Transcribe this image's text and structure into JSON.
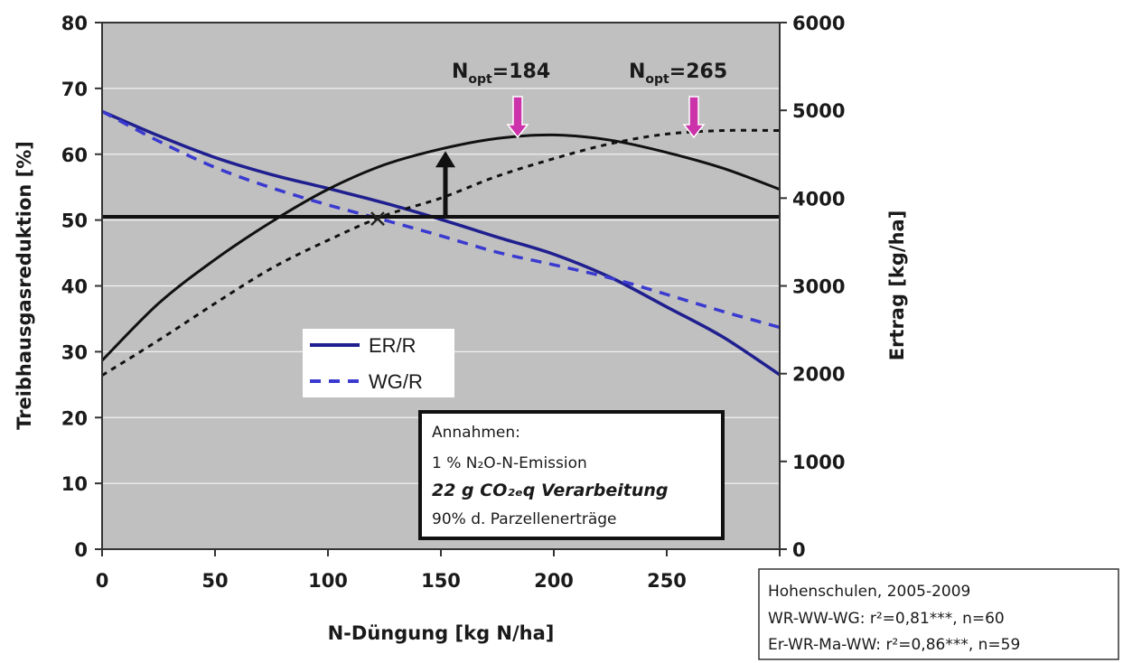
{
  "chart_data": {
    "type": "line",
    "xlabel": "N-Düngung [kg N/ha]",
    "ylabel": "Treibhausgasreduktion [%]",
    "y2label": "Ertrag [kg/ha]",
    "xlim": [
      0,
      300
    ],
    "ylim": [
      0,
      80
    ],
    "y2lim": [
      0,
      6000
    ],
    "x_ticks": [
      0,
      50,
      100,
      150,
      200,
      250
    ],
    "y_ticks": [
      0,
      10,
      20,
      30,
      40,
      50,
      60,
      70,
      80
    ],
    "y2_ticks": [
      0,
      1000,
      2000,
      3000,
      4000,
      5000,
      6000
    ],
    "grid": "horizontal",
    "background": "#c0c0c0",
    "series": [
      {
        "name": "ER/R",
        "axis": "left",
        "style": "solid",
        "color": "#1f1f8f",
        "x": [
          0,
          25,
          50,
          75,
          100,
          125,
          150,
          175,
          200,
          225,
          250,
          275,
          300
        ],
        "y": [
          66.5,
          62.8,
          59.5,
          56.9,
          54.8,
          52.6,
          50.1,
          47.4,
          44.8,
          41.3,
          36.8,
          32.2,
          26.5
        ]
      },
      {
        "name": "WG/R",
        "axis": "left",
        "style": "dashed",
        "color": "#3a3ad0",
        "x": [
          0,
          25,
          50,
          75,
          100,
          125,
          150,
          175,
          200,
          225,
          250,
          275,
          300
        ],
        "y": [
          66.5,
          62.0,
          58.0,
          54.9,
          52.3,
          50.0,
          47.6,
          45.1,
          43.2,
          41.2,
          38.7,
          36.1,
          33.7
        ]
      },
      {
        "axis": "right",
        "style": "solid",
        "color": "#111111",
        "x": [
          0,
          25,
          50,
          75,
          100,
          125,
          150,
          175,
          200,
          225,
          250,
          275,
          300
        ],
        "y": [
          2150,
          2800,
          3300,
          3730,
          4100,
          4380,
          4560,
          4680,
          4720,
          4660,
          4520,
          4340,
          4100
        ]
      },
      {
        "axis": "right",
        "style": "dotted",
        "color": "#111111",
        "x": [
          0,
          25,
          50,
          75,
          100,
          125,
          150,
          175,
          200,
          225,
          250,
          275,
          300
        ],
        "y": [
          1980,
          2380,
          2800,
          3200,
          3520,
          3800,
          4000,
          4250,
          4450,
          4620,
          4730,
          4770,
          4770
        ]
      }
    ],
    "reference_line": {
      "axis": "left",
      "y": 50.5
    },
    "intersection_marker": {
      "x": 122,
      "y": 50.2
    },
    "vertical_arrow": {
      "x": 152,
      "y_from": 50.5,
      "y_to": 60.2
    },
    "annotations": [
      {
        "sub": "opt",
        "value": "=184",
        "x": 184,
        "color": "#cc33aa"
      },
      {
        "sub": "opt",
        "value": "=265",
        "x": 262,
        "color": "#cc33aa"
      }
    ]
  },
  "legend": {
    "items": [
      "ER/R",
      "WG/R"
    ]
  },
  "assumptions_box": {
    "title": "Annahmen:",
    "line1": "1 % N₂O-N-Emission",
    "line2": "22 g CO₂ₑq Verarbeitung",
    "line3": "90% d. Parzellenerträge"
  },
  "source_box": {
    "line1": "Hohenschulen, 2005-2009",
    "line2": "WR-WW-WG: r²=0,81***, n=60",
    "line3": "Er-WR-Ma-WW: r²=0,86***, n=59"
  },
  "annotation_prefix": "N"
}
